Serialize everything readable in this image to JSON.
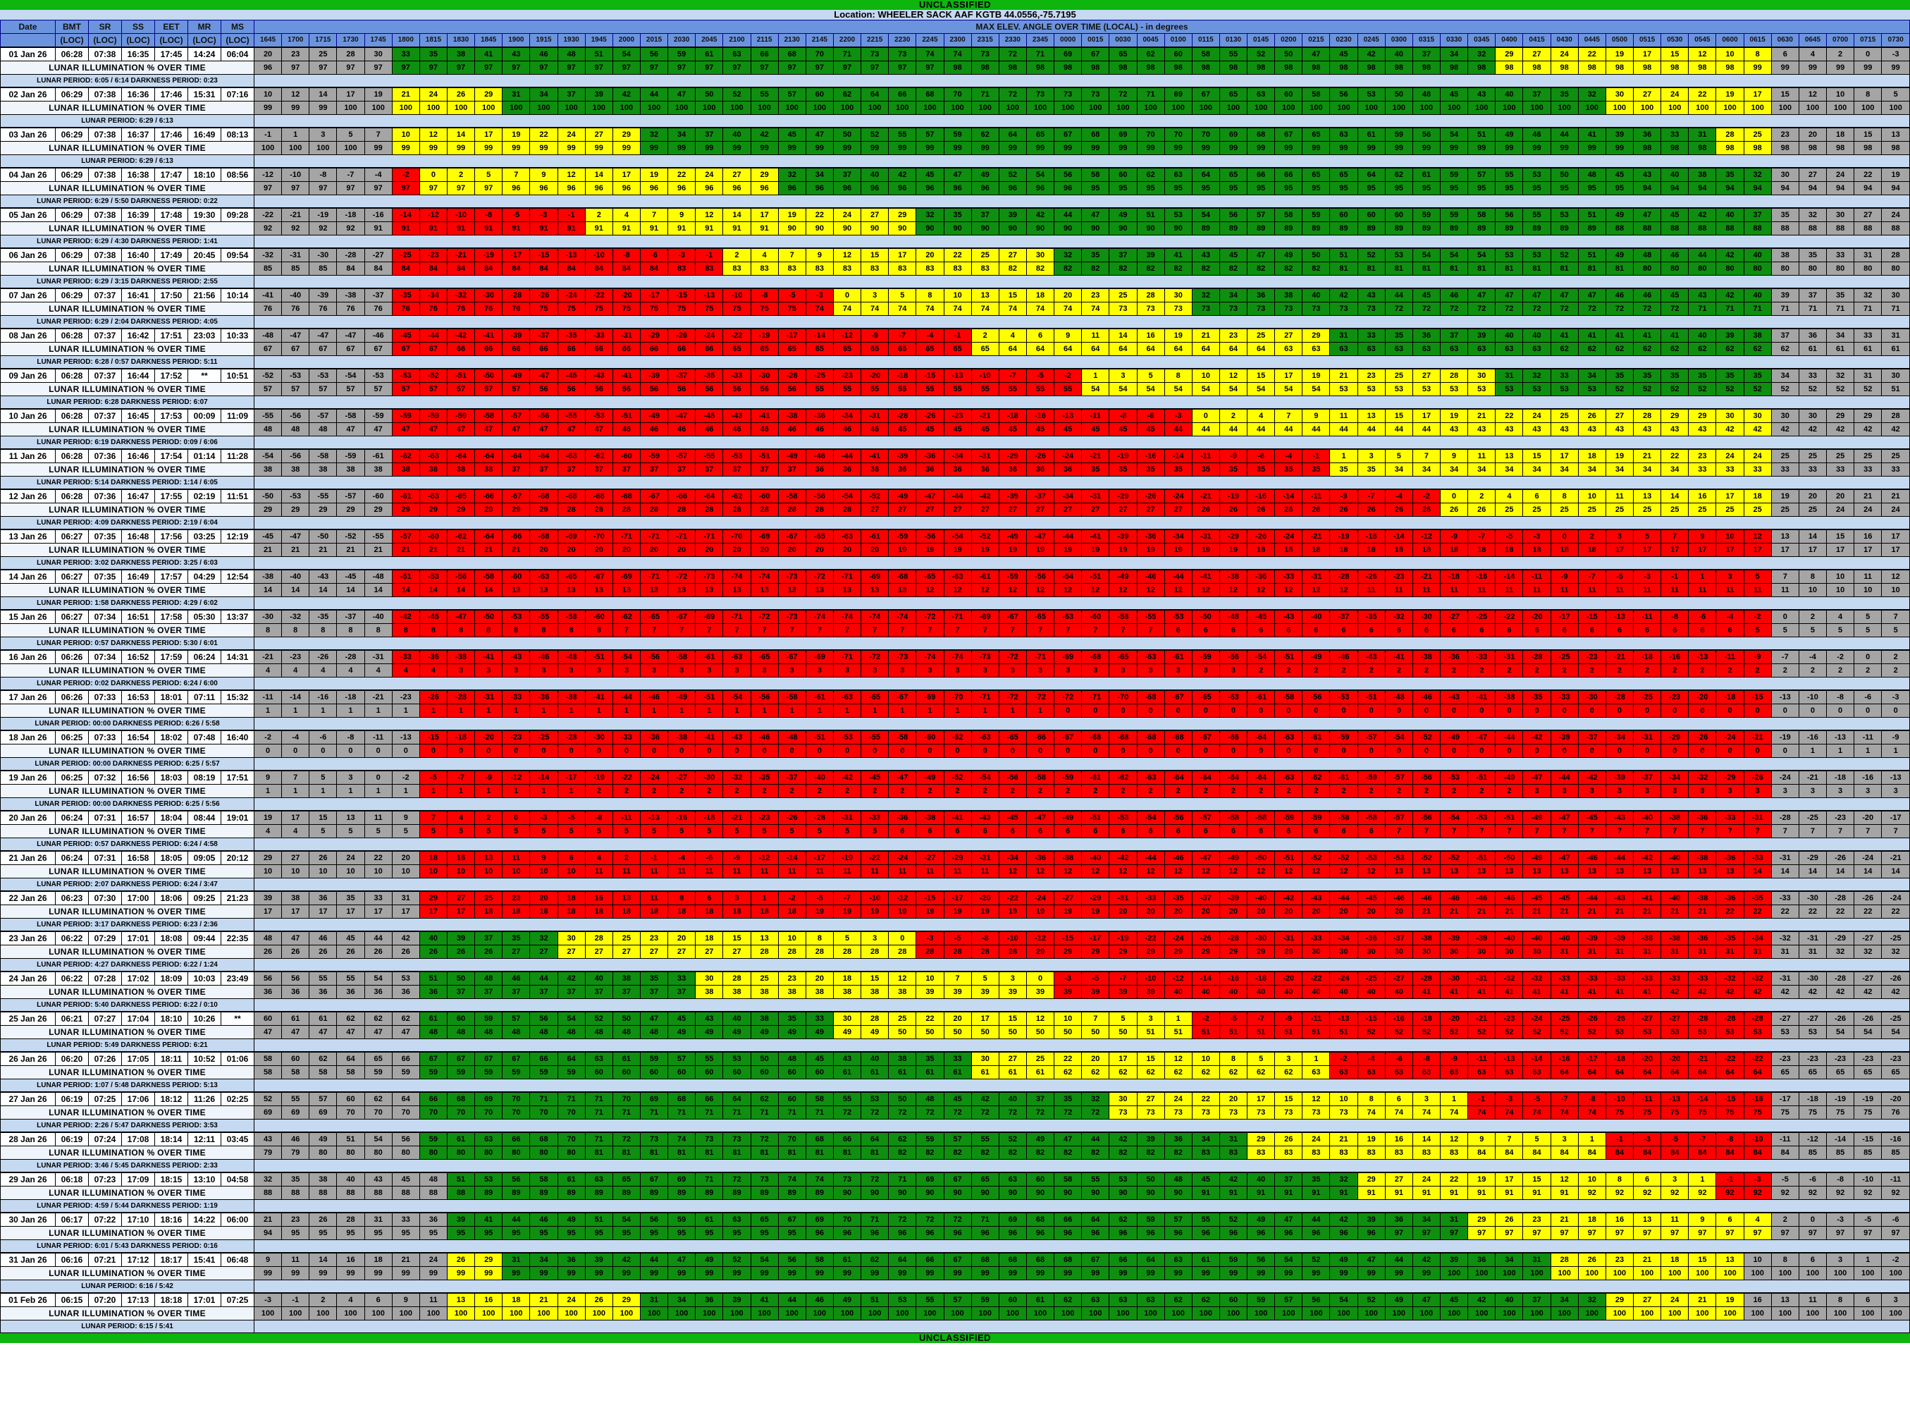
{
  "banners": {
    "top": "UNCLASSIFIED",
    "bottom": "UNCLASSIFIED"
  },
  "location": {
    "text": "Location: WHEELER SACK AAF KGTB 44.0556,-75.7195"
  },
  "colors": {
    "banner_green": "#0DB50D",
    "light_blue_bar": "#C5D9F1",
    "header_blue": "#6C94DE",
    "cell_gray": "#A5A5A5",
    "cell_green": "#0F8F0F",
    "cell_yellow": "#FFFF00",
    "cell_red": "#FF0000",
    "illum_threshold": 23
  },
  "table": {
    "left_headers": [
      "Date",
      "BMT",
      "SR",
      "SS",
      "EET",
      "MR",
      "MS"
    ],
    "left_subheader": "(LOC)",
    "span_header": "MAX ELEV. ANGLE OVER TIME (LOCAL) - in degrees",
    "illum_row_label": "LUNAR ILLUMINATION % OVER TIME",
    "times": [
      "1645",
      "1700",
      "1715",
      "1730",
      "1745",
      "1800",
      "1815",
      "1830",
      "1845",
      "1900",
      "1915",
      "1930",
      "1945",
      "2000",
      "2015",
      "2030",
      "2045",
      "2100",
      "2115",
      "2130",
      "2145",
      "2200",
      "2215",
      "2230",
      "2245",
      "2300",
      "2315",
      "2330",
      "2345",
      "0000",
      "0015",
      "0030",
      "0045",
      "0100",
      "0115",
      "0130",
      "0145",
      "0200",
      "0215",
      "0230",
      "0245",
      "0300",
      "0315",
      "0330",
      "0345",
      "0400",
      "0415",
      "0430",
      "0445",
      "0500",
      "0515",
      "0530",
      "0545",
      "0600",
      "0615",
      "0630",
      "0645",
      "0700",
      "0715",
      "0730"
    ],
    "days": [
      {
        "date": "01 Jan 26",
        "bmt": "06:28",
        "sr": "07:38",
        "ss": "16:35",
        "eet": "17:45",
        "mr": "14:24",
        "ms": "06:04",
        "lead_gray": 5,
        "trail_gray": 5,
        "elev": "20 23 25 28 30 33 35 38 41 43 46 48 51 54 56 59 61 63 66 68 70 71 73 73 74 74 73 72 71 69 67 65 62 60 58 55 52 50 47 45 42 40 37 34 32 29 27 24 22 19 17 15 12 10 8 6 4 2 0 -3",
        "illum_rle": "96:1 97:24 98:29 99:6",
        "period": "LUNAR PERIOD: 6:05 / 6:14  DARKNESS PERIOD: 0:23"
      },
      {
        "date": "02 Jan 26",
        "bmt": "06:29",
        "sr": "07:38",
        "ss": "16:36",
        "eet": "17:46",
        "mr": "15:31",
        "ms": "07:16",
        "lead_gray": 5,
        "trail_gray": 5,
        "elev": "10 12 14 17 19 21 24 26 29 31 34 37 39 42 44 47 50 52 55 57 60 62 64 66 68 70 71 72 73 73 73 72 71 69 67 65 63 60 58 56 53 50 48 45 43 40 37 35 32 30 27 24 22 19 17 15 12 10 8 5",
        "illum_rle": "99:3 100:57",
        "period": "LUNAR PERIOD: 6:29 / 6:13"
      },
      {
        "date": "03 Jan 26",
        "bmt": "06:29",
        "sr": "07:38",
        "ss": "16:37",
        "eet": "17:46",
        "mr": "16:49",
        "ms": "08:13",
        "lead_gray": 5,
        "trail_gray": 5,
        "elev": "-1 1 3 5 7 10 12 14 17 19 22 24 27 29 32 34 37 40 42 45 47 50 52 55 57 59 62 64 65 67 68 69 70 70 70 69 68 67 65 63 61 59 56 54 51 49 46 44 41 39 36 33 31 28 25 23 20 18 15 13",
        "illum_rle": "100:4 99:46 98:10",
        "period": "LUNAR PERIOD: 6:29 / 6:13"
      },
      {
        "date": "04 Jan 26",
        "bmt": "06:29",
        "sr": "07:38",
        "ss": "16:38",
        "eet": "17:47",
        "mr": "18:10",
        "ms": "08:56",
        "lead_gray": 5,
        "trail_gray": 5,
        "elev": "-12 -10 -8 -7 -4 -2 0 2 5 7 9 12 14 17 19 22 24 27 29 32 34 37 40 42 45 47 49 52 54 56 58 60 62 63 64 65 66 66 65 65 64 62 61 59 57 55 53 50 48 45 43 40 38 35 32 30 27 24 22 19",
        "illum_rle": "97:9 96:21 95:20 94:10",
        "period": "LUNAR PERIOD: 6:29 / 5:50  DARKNESS PERIOD: 0:22"
      },
      {
        "date": "05 Jan 26",
        "bmt": "06:29",
        "sr": "07:38",
        "ss": "16:39",
        "eet": "17:48",
        "mr": "19:30",
        "ms": "09:28",
        "lead_gray": 5,
        "trail_gray": 5,
        "elev": "-22 -21 -19 -18 -16 -14 -12 -10 -8 -5 -3 -1 2 4 7 9 12 14 17 19 22 24 27 29 32 35 37 39 42 44 47 49 51 53 54 56 57 58 59 60 60 60 59 59 58 56 55 53 51 49 47 45 42 40 37 35 32 30 27 24",
        "illum_rle": "92:4 91:15 90:15 89:15 88:11",
        "period": "LUNAR PERIOD: 6:29 / 4:30  DARKNESS PERIOD: 1:41"
      },
      {
        "date": "06 Jan 26",
        "bmt": "06:29",
        "sr": "07:38",
        "ss": "16:40",
        "eet": "17:49",
        "mr": "20:45",
        "ms": "09:54",
        "lead_gray": 5,
        "trail_gray": 5,
        "elev": "-32 -31 -30 -28 -27 -25 -23 -21 -19 -17 -15 -13 -10 -8 -6 -3 -1 2 4 7 9 12 15 17 20 22 25 27 30 32 35 37 39 41 43 45 47 49 50 51 52 53 54 54 54 53 53 52 51 49 48 46 44 42 40 38 35 33 31 28",
        "illum_rle": "85:3 84:12 83:12 82:12 81:11 80:10",
        "period": "LUNAR PERIOD: 6:29 / 3:15  DARKNESS PERIOD: 2:55"
      },
      {
        "date": "07 Jan 26",
        "bmt": "06:29",
        "sr": "07:37",
        "ss": "16:41",
        "eet": "17:50",
        "mr": "21:56",
        "ms": "10:14",
        "lead_gray": 5,
        "trail_gray": 5,
        "elev": "-41 -40 -39 -38 -37 -35 -34 -32 -30 -28 -26 -24 -22 -20 -17 -15 -13 -10 -8 -5 -3 0 3 5 8 10 13 15 18 20 23 25 28 30 32 34 36 38 40 42 43 44 45 46 47 47 47 47 47 46 46 45 43 42 40 39 37 35 32 30",
        "illum_rle": "76:10 75:10 74:11 73:10 72:11 71:8",
        "period": "LUNAR PERIOD: 6:29 / 2:04  DARKNESS PERIOD: 4:05"
      },
      {
        "date": "08 Jan 26",
        "bmt": "06:28",
        "sr": "07:37",
        "ss": "16:42",
        "eet": "17:51",
        "mr": "23:03",
        "ms": "10:33",
        "lead_gray": 5,
        "trail_gray": 5,
        "elev": "-48 -47 -47 -47 -46 -45 -44 -42 -41 -39 -37 -35 -33 -31 -29 -26 -24 -22 -19 -17 -14 -12 -9 -7 -4 -1 2 4 6 9 11 14 16 19 21 23 25 27 29 31 33 35 36 37 39 40 40 41 41 41 41 41 40 39 38 37 36 34 33 31",
        "illum_rle": "67:7 66:10 65:10 64:10 63:10 62:9 61:4",
        "period": "LUNAR PERIOD: 6:28 / 0:57  DARKNESS PERIOD: 5:11"
      },
      {
        "date": "09 Jan 26",
        "bmt": "06:28",
        "sr": "07:37",
        "ss": "16:44",
        "eet": "17:52",
        "mr": "**",
        "ms": "10:51",
        "lead_gray": 5,
        "trail_gray": 5,
        "elev": "-52 -53 -53 -54 -53 -53 -52 -51 -50 -49 -47 -45 -43 -41 -39 -37 -35 -33 -30 -28 -25 -23 -20 -18 -15 -13 -10 -7 -5 -2 1 3 5 8 10 12 15 17 19 21 23 25 27 28 30 31 32 33 34 35 35 35 35 35 35 34 33 32 31 30",
        "illum_rle": "57:10 56:10 55:10 54:9 53:10 52:10 51:1",
        "period": "LUNAR PERIOD: 6:28  DARKNESS PERIOD: 6:07"
      },
      {
        "date": "10 Jan 26",
        "bmt": "06:28",
        "sr": "07:37",
        "ss": "16:45",
        "eet": "17:53",
        "mr": "00:09",
        "ms": "11:09",
        "lead_gray": 5,
        "trail_gray": 5,
        "elev": "-55 -56 -57 -58 -59 -59 -59 -59 -58 -57 -56 -55 -53 -51 -49 -47 -45 -43 -41 -38 -36 -34 -31 -28 -26 -23 -21 -18 -16 -13 -11 -8 -6 -3 0 2 4 7 9 11 13 15 17 19 21 22 24 25 26 27 28 29 29 30 30 30 30 29 29 28",
        "illum_rle": "48:3 47:10 46:10 45:10 44:10 43:10 42:7",
        "period": "LUNAR PERIOD: 6:19  DARKNESS PERIOD: 0:09 / 6:06"
      },
      {
        "date": "11 Jan 26",
        "bmt": "06:28",
        "sr": "07:36",
        "ss": "16:46",
        "eet": "17:54",
        "mr": "01:14",
        "ms": "11:28",
        "lead_gray": 5,
        "trail_gray": 5,
        "elev": "-54 -56 -58 -59 -61 -62 -63 -64 -64 -64 -64 -63 -62 -60 -59 -57 -55 -53 -51 -49 -46 -44 -41 -39 -36 -34 -31 -29 -26 -24 -21 -19 -16 -14 -11 -9 -6 -4 -1 1 3 5 7 9 11 13 15 17 18 19 21 22 23 24 24 25 25 25 25 25",
        "illum_rle": "38:9 37:11 36:10 35:11 34:11 33:8",
        "period": "LUNAR PERIOD: 5:14  DARKNESS PERIOD: 1:14 / 6:05"
      },
      {
        "date": "12 Jan 26",
        "bmt": "06:28",
        "sr": "07:36",
        "ss": "16:47",
        "eet": "17:55",
        "mr": "02:19",
        "ms": "11:51",
        "lead_gray": 5,
        "trail_gray": 5,
        "elev": "-50 -53 -55 -57 -60 -61 -63 -65 -66 -67 -68 -68 -68 -68 -67 -66 -64 -62 -60 -58 -56 -54 -52 -49 -47 -44 -42 -39 -37 -34 -31 -29 -26 -24 -21 -19 -16 -14 -11 -9 -7 -4 -2 0 2 4 6 8 10 11 13 14 16 17 18 19 20 20 21 21",
        "illum_rle": "29:11 28:11 27:12 26:11 25:12 24:3",
        "period": "LUNAR PERIOD: 4:09  DARKNESS PERIOD: 2:19 / 6:04"
      },
      {
        "date": "13 Jan 26",
        "bmt": "06:27",
        "sr": "07:35",
        "ss": "16:48",
        "eet": "17:56",
        "mr": "03:25",
        "ms": "12:19",
        "lead_gray": 5,
        "trail_gray": 5,
        "elev": "-45 -47 -50 -52 -55 -57 -60 -62 -64 -66 -68 -69 -70 -71 -71 -71 -71 -70 -69 -67 -65 -63 -61 -59 -56 -54 -52 -49 -47 -44 -41 -39 -36 -34 -31 -29 -26 -24 -21 -19 -16 -14 -12 -9 -7 -5 -3 0 2 3 5 7 9 10 12 13 14 15 16 17",
        "illum_rle": "21:10 20:13 19:13 18:13 17:11",
        "period": "LUNAR PERIOD: 3:02  DARKNESS PERIOD: 3:25 / 6:03"
      },
      {
        "date": "14 Jan 26",
        "bmt": "06:27",
        "sr": "07:35",
        "ss": "16:49",
        "eet": "17:57",
        "mr": "04:29",
        "ms": "12:54",
        "lead_gray": 5,
        "trail_gray": 5,
        "elev": "-38 -40 -43 -45 -48 -51 -53 -56 -58 -60 -63 -65 -67 -69 -71 -72 -73 -74 -74 -73 -72 -71 -69 -68 -65 -63 -61 -59 -56 -54 -51 -49 -46 -44 -41 -38 -36 -33 -31 -28 -26 -23 -21 -18 -16 -14 -11 -9 -7 -5 -3 -1 1 3 5 7 8 10 11 12",
        "illum_rle": "14:9 13:15 12:16 11:16 10:4",
        "period": "LUNAR PERIOD: 1:58  DARKNESS PERIOD: 4:29 / 6:02"
      },
      {
        "date": "15 Jan 26",
        "bmt": "06:27",
        "sr": "07:34",
        "ss": "16:51",
        "eet": "17:58",
        "mr": "05:30",
        "ms": "13:37",
        "lead_gray": 5,
        "trail_gray": 5,
        "elev": "-30 -32 -35 -37 -40 -42 -45 -47 -50 -53 -55 -58 -60 -62 -65 -67 -69 -71 -72 -73 -74 -74 -74 -74 -72 -71 -69 -67 -65 -63 -60 -58 -55 -53 -50 -48 -45 -43 -40 -37 -35 -32 -30 -27 -25 -22 -20 -17 -15 -13 -11 -8 -6 -4 -2 0 2 4 5 7",
        "illum_rle": "8:13 7:20 6:21 5:6",
        "period": "LUNAR PERIOD: 0:57  DARKNESS PERIOD: 5:30 / 6:01"
      },
      {
        "date": "16 Jan 26",
        "bmt": "06:26",
        "sr": "07:34",
        "ss": "16:52",
        "eet": "17:59",
        "mr": "06:24",
        "ms": "14:31",
        "lead_gray": 5,
        "trail_gray": 5,
        "elev": "-21 -23 -26 -28 -31 -33 -36 -38 -41 -43 -46 -48 -51 -54 -56 -58 -61 -63 -65 -67 -69 -71 -72 -73 -74 -74 -73 -72 -71 -69 -68 -65 -63 -61 -59 -56 -54 -51 -49 -46 -43 -41 -38 -36 -33 -31 -28 -25 -23 -21 -18 -16 -13 -11 -9 -7 -4 -2 0 2",
        "illum_rle": "4:7 3:29 2:24",
        "period": "LUNAR PERIOD: 0:02  DARKNESS PERIOD: 6:24 / 6:00"
      },
      {
        "date": "17 Jan 26",
        "bmt": "06:26",
        "sr": "07:33",
        "ss": "16:53",
        "eet": "18:01",
        "mr": "07:11",
        "ms": "15:32",
        "lead_gray": 6,
        "trail_gray": 5,
        "elev": "-11 -14 -16 -18 -21 -23 -26 -28 -31 -33 -36 -38 -41 -44 -46 -49 -51 -54 -56 -58 -61 -63 -65 -67 -69 -70 -71 -72 -72 -72 -71 -70 -68 -67 -65 -63 -61 -58 -56 -53 -51 -48 -46 -43 -41 -38 -35 -33 -30 -28 -25 -23 -20 -18 -15 -13 -10 -8 -6 -3",
        "illum_rle": "1:29 0:31",
        "period": "LUNAR PERIOD: 00:00  DARKNESS PERIOD: 6:26 / 5:58"
      },
      {
        "date": "18 Jan 26",
        "bmt": "06:25",
        "sr": "07:33",
        "ss": "16:54",
        "eet": "18:02",
        "mr": "07:48",
        "ms": "16:40",
        "lead_gray": 6,
        "trail_gray": 5,
        "elev": "-2 -4 -6 -8 -11 -13 -15 -18 -20 -23 -25 -28 -30 -33 -36 -38 -41 -43 -46 -48 -51 -53 -55 -58 -60 -62 -63 -65 -66 -67 -68 -68 -68 -68 -67 -66 -64 -63 -61 -59 -57 -54 -52 -49 -47 -44 -42 -39 -37 -34 -31 -29 -26 -24 -21 -19 -16 -13 -11 -9",
        "illum_rle": "0:56 1:4",
        "period": "LUNAR PERIOD: 00:00  DARKNESS PERIOD: 6:25 / 5:57"
      },
      {
        "date": "19 Jan 26",
        "bmt": "06:25",
        "sr": "07:32",
        "ss": "16:56",
        "eet": "18:03",
        "mr": "08:19",
        "ms": "17:51",
        "lead_gray": 6,
        "trail_gray": 5,
        "elev": "9 7 5 3 0 -2 -5 -7 -9 -12 -14 -17 -19 -22 -24 -27 -30 -32 -35 -37 -40 -42 -45 -47 -49 -52 -54 -56 -58 -59 -61 -62 -63 -64 -64 -64 -64 -63 -62 -61 -59 -57 -56 -53 -51 -49 -47 -44 -42 -39 -37 -34 -32 -29 -26 -24 -21 -18 -16 -13",
        "illum_rle": "1:12 2:34 3:14",
        "period": "LUNAR PERIOD: 00:00  DARKNESS PERIOD: 6:25 / 5:56"
      },
      {
        "date": "20 Jan 26",
        "bmt": "06:24",
        "sr": "07:31",
        "ss": "16:57",
        "eet": "18:04",
        "mr": "08:44",
        "ms": "19:01",
        "lead_gray": 6,
        "trail_gray": 5,
        "elev": "19 17 15 13 11 9 7 4 2 0 -3 -5 -8 -11 -13 -16 -18 -21 -23 -26 -28 -31 -33 -36 -38 -41 -43 -45 -47 -49 -51 -53 -54 -56 -57 -58 -58 -59 -59 -58 -58 -57 -56 -54 -53 -51 -49 -47 -45 -43 -40 -38 -36 -33 -31 -28 -25 -23 -20 -17",
        "illum_rle": "4:2 5:21 6:18 7:19",
        "period": "LUNAR PERIOD: 0:57  DARKNESS PERIOD: 6:24 / 4:58"
      },
      {
        "date": "21 Jan 26",
        "bmt": "06:24",
        "sr": "07:31",
        "ss": "16:58",
        "eet": "18:05",
        "mr": "09:05",
        "ms": "20:12",
        "lead_gray": 6,
        "trail_gray": 5,
        "elev": "29 27 26 24 22 20 18 16 13 11 9 6 4 2 -1 -4 -6 -9 -12 -14 -17 -19 -22 -24 -27 -29 -31 -34 -36 -38 -40 -42 -44 -46 -47 -49 -50 -51 -52 -52 -53 -53 -52 -52 -51 -50 -49 -47 -46 -44 -42 -40 -38 -36 -33 -31 -29 -26 -24 -21",
        "illum_rle": "10:12 11:15 12:14 13:13 14:6",
        "period": "LUNAR PERIOD: 2:07  DARKNESS PERIOD: 6:24 / 3:47"
      },
      {
        "date": "22 Jan 26",
        "bmt": "06:23",
        "sr": "07:30",
        "ss": "17:00",
        "eet": "18:06",
        "mr": "09:25",
        "ms": "21:23",
        "lead_gray": 6,
        "trail_gray": 5,
        "elev": "39 38 36 35 33 31 29 27 25 23 20 18 16 13 11 8 6 3 1 -2 -5 -7 -10 -12 -15 -17 -20 -22 -24 -27 -29 -31 -33 -35 -37 -39 -40 -42 -43 -44 -45 -46 -46 -46 -46 -46 -45 -45 -44 -43 -41 -40 -38 -36 -35 -33 -30 -28 -26 -24",
        "illum_rle": "17:8 18:12 19:11 20:11 21:11 22:7",
        "period": "LUNAR PERIOD: 3:17  DARKNESS PERIOD: 6:23 / 2:36"
      },
      {
        "date": "23 Jan 26",
        "bmt": "06:22",
        "sr": "07:29",
        "ss": "17:01",
        "eet": "18:08",
        "mr": "09:44",
        "ms": "22:35",
        "lead_gray": 6,
        "trail_gray": 5,
        "elev": "48 47 46 45 44 42 40 39 37 35 32 30 28 25 23 20 18 15 13 10 8 5 3 0 -3 -5 -8 -10 -12 -15 -17 -19 -22 -24 -26 -28 -30 -31 -33 -34 -36 -37 -38 -39 -39 -40 -40 -40 -39 -39 -38 -38 -36 -35 -34 -32 -31 -29 -27 -25",
        "illum_rle": "26:9 27:9 28:10 29:10 30:9 31:10 32:3",
        "period": "LUNAR PERIOD: 4:27  DARKNESS PERIOD: 6:22 / 1:24"
      },
      {
        "date": "24 Jan 26",
        "bmt": "06:22",
        "sr": "07:28",
        "ss": "17:02",
        "eet": "18:09",
        "mr": "10:03",
        "ms": "23:49",
        "lead_gray": 6,
        "trail_gray": 5,
        "elev": "56 56 55 55 54 53 51 50 48 46 44 42 40 38 35 33 30 28 25 23 20 18 15 12 10 7 5 3 0 -3 -5 -7 -10 -12 -14 -16 -18 -20 -22 -24 -25 -27 -28 -30 -31 -32 -32 -33 -33 -33 -33 -33 -33 -32 -32 -31 -30 -28 -27 -26",
        "illum_rle": "36:7 37:9 38:8 39:9 40:9 41:9 42:9",
        "period": "LUNAR PERIOD: 5:40  DARKNESS PERIOD: 6:22 / 0:10"
      },
      {
        "date": "25 Jan 26",
        "bmt": "06:21",
        "sr": "07:27",
        "ss": "17:04",
        "eet": "18:10",
        "mr": "10:26",
        "ms": "**",
        "lead_gray": 6,
        "trail_gray": 5,
        "elev": "60 61 61 62 62 62 61 60 59 57 56 54 52 50 47 45 43 40 38 35 33 30 28 25 22 20 17 15 12 10 7 5 3 1 -2 -5 -7 -9 -11 -13 -15 -16 -18 -20 -21 -23 -24 -25 -26 -26 -27 -27 -28 -28 -28 -27 -27 -26 -26 -25",
        "illum_rle": "47:6 48:9 49:8 50:9 51:8 52:9 53:8 54:3",
        "period": "LUNAR PERIOD: 5:49  DARKNESS PERIOD: 6:21"
      },
      {
        "date": "26 Jan 26",
        "bmt": "06:20",
        "sr": "07:26",
        "ss": "17:05",
        "eet": "18:11",
        "mr": "10:52",
        "ms": "01:06",
        "lead_gray": 6,
        "trail_gray": 5,
        "elev": "58 60 62 64 65 66 67 67 67 67 66 64 63 61 59 57 55 53 50 48 45 43 40 38 35 33 30 27 25 22 20 17 15 12 10 8 5 3 1 -2 -4 -6 -8 -9 -11 -13 -14 -16 -17 -18 -20 -20 -21 -22 -22 -23 -23 -23 -23 -23",
        "illum_rle": "58:4 59:8 60:9 61:8 62:9 63:9 64:8 65:5",
        "period": "LUNAR PERIOD: 1:07 / 5:48  DARKNESS PERIOD: 5:13"
      },
      {
        "date": "27 Jan 26",
        "bmt": "06:19",
        "sr": "07:25",
        "ss": "17:06",
        "eet": "18:12",
        "mr": "11:26",
        "ms": "02:25",
        "lead_gray": 6,
        "trail_gray": 5,
        "elev": "52 55 57 60 62 64 66 68 69 70 71 71 71 70 69 68 66 64 62 60 58 55 53 50 48 45 42 40 37 35 32 30 27 24 22 20 17 15 12 10 8 6 3 1 -1 -3 -5 -7 -8 -10 -11 -13 -14 -15 -16 -17 -18 -19 -19 -20",
        "illum_rle": "69:3 70:9 71:9 72:10 73:9 74:9 75:10 76:1",
        "period": "LUNAR PERIOD: 2:26 / 5:47  DARKNESS PERIOD: 3:53"
      },
      {
        "date": "28 Jan 26",
        "bmt": "06:19",
        "sr": "07:24",
        "ss": "17:08",
        "eet": "18:14",
        "mr": "12:11",
        "ms": "03:45",
        "lead_gray": 6,
        "trail_gray": 5,
        "elev": "43 46 49 51 54 56 59 61 63 66 68 70 71 72 73 74 73 73 72 70 68 66 64 62 59 57 55 52 49 47 44 42 39 36 34 31 29 26 24 21 19 16 14 12 9 7 5 3 1 -1 -3 -5 -7 -8 -10 -11 -12 -14 -15 -16",
        "illum_rle": "79:2 80:10 81:11 82:11 83:10 84:12 85:4",
        "period": "LUNAR PERIOD: 3:46 / 5:45  DARKNESS PERIOD: 2:33"
      },
      {
        "date": "29 Jan 26",
        "bmt": "06:18",
        "sr": "07:23",
        "ss": "17:09",
        "eet": "18:15",
        "mr": "13:10",
        "ms": "04:58",
        "lead_gray": 7,
        "trail_gray": 5,
        "elev": "32 35 38 40 43 45 48 51 53 56 58 61 63 65 67 69 71 72 73 74 74 73 72 71 69 67 65 63 60 58 55 53 50 48 45 42 40 37 35 32 29 27 24 22 19 17 15 12 10 8 6 3 1 -1 -3 -5 -6 -8 -10 -11",
        "illum_rle": "88:8 89:13 90:13 91:14 92:12",
        "period": "LUNAR PERIOD: 4:59 / 5:44  DARKNESS PERIOD: 1:19"
      },
      {
        "date": "30 Jan 26",
        "bmt": "06:17",
        "sr": "07:22",
        "ss": "17:10",
        "eet": "18:16",
        "mr": "14:22",
        "ms": "06:00",
        "lead_gray": 7,
        "trail_gray": 5,
        "elev": "21 23 26 28 31 33 36 39 41 44 46 49 51 54 56 59 61 63 65 67 69 70 71 72 72 72 71 69 68 66 64 62 59 57 55 52 49 47 44 42 39 36 34 31 29 26 23 21 18 16 13 11 9 6 4 2 0 -3 -5 -6",
        "illum_rle": "94:1 95:19 96:21 97:19",
        "period": "LUNAR PERIOD: 6:01 / 5:43  DARKNESS PERIOD: 0:16"
      },
      {
        "date": "31 Jan 26",
        "bmt": "06:16",
        "sr": "07:21",
        "ss": "17:12",
        "eet": "18:17",
        "mr": "15:41",
        "ms": "06:48",
        "lead_gray": 7,
        "trail_gray": 6,
        "elev": "9 11 14 16 18 21 24 26 29 31 34 36 39 42 44 47 49 52 54 56 58 61 62 64 66 67 68 68 68 68 67 66 64 63 61 59 56 54 52 49 47 44 42 39 36 34 31 28 26 23 21 18 15 13 10 8 6 3 1 -2",
        "illum_rle": "99:43 100:17",
        "period": "LUNAR PERIOD: 6:16 / 5:42"
      },
      {
        "date": "01 Feb 26",
        "bmt": "06:15",
        "sr": "07:20",
        "ss": "17:13",
        "eet": "18:18",
        "mr": "17:01",
        "ms": "07:25",
        "lead_gray": 7,
        "trail_gray": 6,
        "elev": "-3 -1 2 4 6 9 11 13 16 18 21 24 26 29 31 34 36 39 41 44 46 49 51 53 55 57 59 60 61 62 63 63 63 62 62 60 59 57 56 54 52 49 47 45 42 40 37 34 32 29 27 24 21 19 16 13 11 8 6 3",
        "illum_rle": "100:60",
        "period": "LUNAR PERIOD: 6:15 / 5:41"
      }
    ]
  }
}
